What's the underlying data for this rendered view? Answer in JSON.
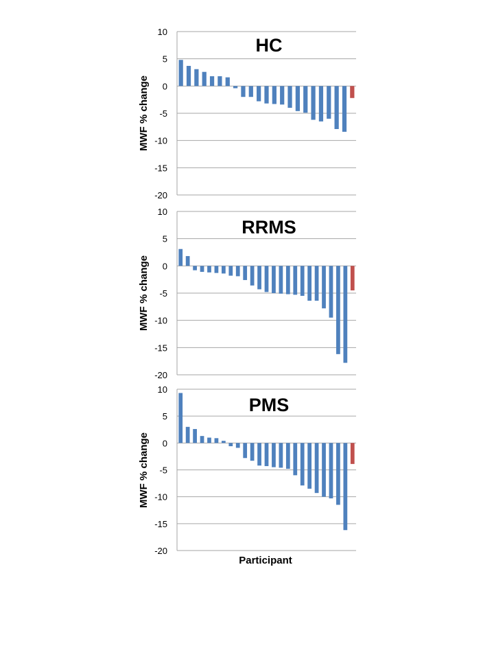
{
  "figure": {
    "x_axis_title": "Participant",
    "colors": {
      "bar": "#4f81bd",
      "mean_bar": "#c0504d",
      "grid": "#a6a6a6",
      "text": "#000000"
    }
  },
  "chart_data": [
    {
      "type": "bar",
      "title": "HC",
      "ylabel": "MWF % change",
      "xlabel": "",
      "ylim": [
        -20,
        10
      ],
      "yticks": [
        10,
        5,
        0,
        -5,
        -10,
        -15,
        -20
      ],
      "grid": true,
      "values": [
        4.8,
        3.7,
        3.1,
        2.6,
        1.8,
        1.8,
        1.6,
        -0.4,
        -2.0,
        -2.0,
        -2.8,
        -3.2,
        -3.3,
        -3.4,
        -4.0,
        -4.6,
        -4.9,
        -6.2,
        -6.5,
        -6.0,
        -7.9,
        -8.4
      ],
      "highlight_value": -2.2
    },
    {
      "type": "bar",
      "title": "RRMS",
      "ylabel": "MWF % change",
      "xlabel": "",
      "ylim": [
        -20,
        10
      ],
      "yticks": [
        10,
        5,
        0,
        -5,
        -10,
        -15,
        -20
      ],
      "grid": true,
      "values": [
        3.1,
        1.8,
        -0.8,
        -1.1,
        -1.2,
        -1.3,
        -1.4,
        -1.8,
        -1.9,
        -2.6,
        -3.6,
        -4.3,
        -4.8,
        -5.0,
        -5.1,
        -5.2,
        -5.3,
        -5.5,
        -6.4,
        -6.4,
        -7.8,
        -9.5,
        -16.2,
        -17.8
      ],
      "highlight_value": -4.5
    },
    {
      "type": "bar",
      "title": "PMS",
      "ylabel": "MWF % change",
      "xlabel": "Participant",
      "ylim": [
        -20,
        10
      ],
      "yticks": [
        10,
        5,
        0,
        -5,
        -10,
        -15,
        -20
      ],
      "grid": true,
      "values": [
        9.3,
        3.0,
        2.6,
        1.3,
        1.0,
        0.9,
        0.4,
        -0.6,
        -0.9,
        -2.8,
        -3.3,
        -4.2,
        -4.3,
        -4.5,
        -4.6,
        -4.8,
        -6.0,
        -7.9,
        -8.5,
        -9.3,
        -10.0,
        -10.3,
        -11.5,
        -16.2
      ],
      "highlight_value": -3.9
    }
  ]
}
